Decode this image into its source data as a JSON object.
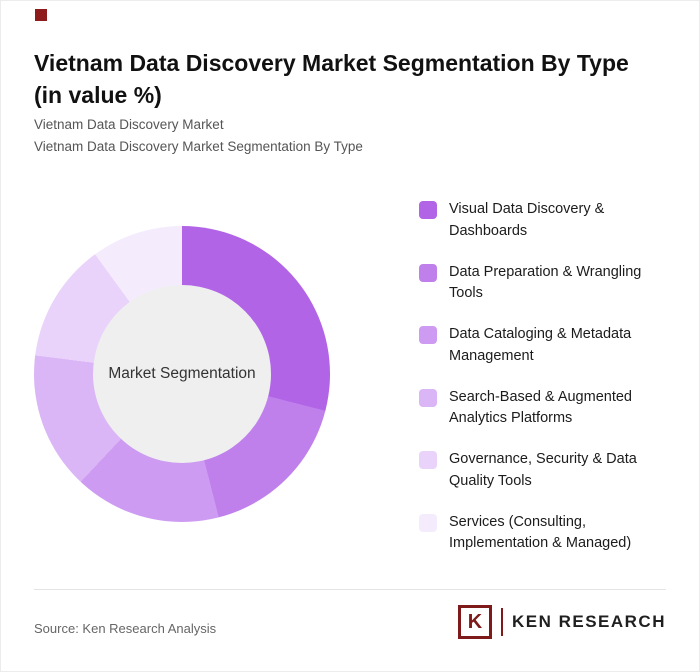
{
  "accent": {
    "color": "#8d1b1b"
  },
  "header": {
    "title": "Vietnam Data Discovery Market Segmentation By Type (in value %)",
    "subtitle1": "Vietnam Data Discovery Market",
    "subtitle2": "Vietnam Data Discovery Market Segmentation By Type"
  },
  "chart_data": {
    "type": "pie",
    "donut": true,
    "title": "Vietnam Data Discovery Market Segmentation By Type (in value %)",
    "center_label": "Market Segmentation",
    "categories": [
      "Visual Data Discovery & Dashboards",
      "Data Preparation & Wrangling Tools",
      "Data Cataloging & Metadata Management",
      "Search-Based & Augmented Analytics Platforms",
      "Governance, Security & Data Quality Tools",
      "Services (Consulting, Implementation & Managed)"
    ],
    "values": [
      29,
      17,
      16,
      15,
      13,
      10
    ],
    "colors": [
      "#b164e6",
      "#c080ec",
      "#cd9bf1",
      "#dbb6f6",
      "#e9d3fa",
      "#f4ecfd"
    ],
    "start_angle_deg": 0,
    "hole_color": "#efeff0",
    "legend_position": "right"
  },
  "footer": {
    "source": "Source: Ken Research Analysis",
    "logo_icon_letter": "K",
    "logo_text": "KEN RESEARCH"
  }
}
